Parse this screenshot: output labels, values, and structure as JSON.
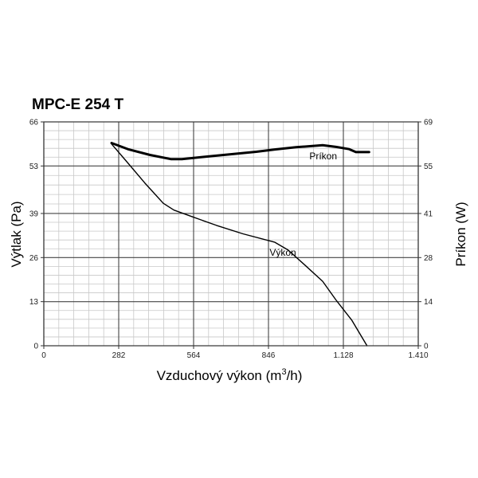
{
  "chart_data": {
    "type": "line",
    "title": "MPC-E 254 T",
    "xlabel_prefix": "Vzduchový výkon (m",
    "xlabel_sup": "3",
    "xlabel_suffix": "/h)",
    "ylabel_left": "Výtlak (Pa)",
    "ylabel_right": "Príkon (W)",
    "xlim": [
      0,
      1410
    ],
    "ylim_left": [
      0,
      66
    ],
    "ylim_right": [
      0,
      69
    ],
    "x_ticks": [
      0,
      282,
      564,
      846,
      1128,
      1410
    ],
    "x_tick_labels": [
      "0",
      "282",
      "564",
      "846",
      "1.128",
      "1.410"
    ],
    "y_left_ticks": [
      0,
      13,
      26,
      39,
      53,
      66
    ],
    "y_left_tick_labels": [
      "0",
      "13",
      "26",
      "39",
      "53",
      "66"
    ],
    "y_right_tick_labels": [
      "0",
      "14",
      "28",
      "41",
      "55",
      "69"
    ],
    "grid": true,
    "series": [
      {
        "name": "Výkon",
        "axis": "left",
        "stroke_width": 1.4,
        "points": [
          [
            255,
            59.5
          ],
          [
            310,
            54.5
          ],
          [
            380,
            48
          ],
          [
            450,
            42
          ],
          [
            490,
            40
          ],
          [
            560,
            38
          ],
          [
            650,
            35.5
          ],
          [
            750,
            33
          ],
          [
            870,
            30.5
          ],
          [
            920,
            28.2
          ],
          [
            980,
            24
          ],
          [
            1050,
            19
          ],
          [
            1100,
            13.5
          ],
          [
            1160,
            7.5
          ],
          [
            1217,
            0
          ]
        ]
      },
      {
        "name": "Príkon",
        "axis": "right",
        "stroke_width": 3,
        "points": [
          [
            255,
            62.5
          ],
          [
            320,
            60.5
          ],
          [
            400,
            58.8
          ],
          [
            480,
            57.5
          ],
          [
            520,
            57.5
          ],
          [
            600,
            58.2
          ],
          [
            700,
            59
          ],
          [
            800,
            59.8
          ],
          [
            870,
            60.5
          ],
          [
            950,
            61.2
          ],
          [
            1050,
            61.8
          ],
          [
            1100,
            61.3
          ],
          [
            1150,
            60.6
          ],
          [
            1175,
            59.7
          ],
          [
            1200,
            59.7
          ],
          [
            1225,
            59.7
          ]
        ]
      }
    ]
  }
}
